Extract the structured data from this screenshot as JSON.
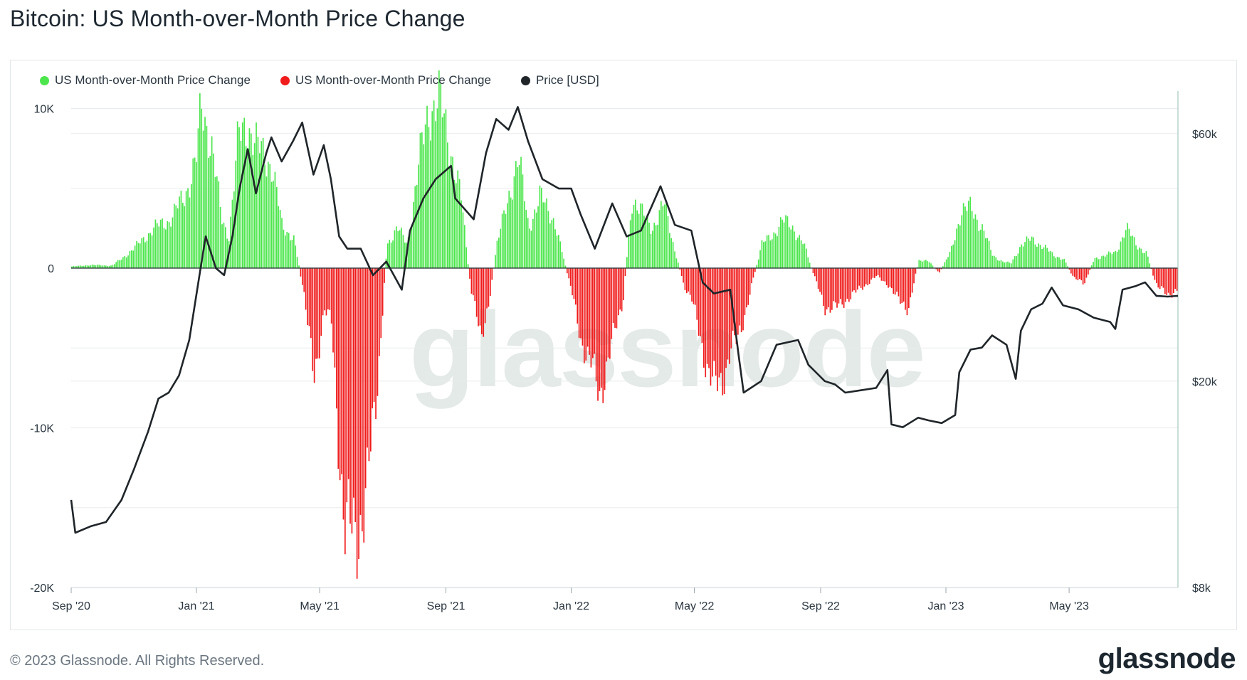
{
  "page": {
    "title": "Bitcoin: US Month-over-Month Price Change",
    "copyright": "© 2023 Glassnode. All Rights Reserved.",
    "logo_text": "glassnode",
    "watermark_text": "glassnode"
  },
  "colors": {
    "positive": "#4ce64c",
    "negative": "#f01b1b",
    "price_line": "#1f2529",
    "grid": "#e8ebee",
    "right_axis_line": "#a8c8c0"
  },
  "chart_data": {
    "type": "bar",
    "title": "Bitcoin: US Month-over-Month Price Change",
    "legend": [
      {
        "name": "US Month-over-Month Price Change",
        "color": "#4ce64c"
      },
      {
        "name": "US Month-over-Month Price Change",
        "color": "#f01b1b"
      },
      {
        "name": "Price [USD]",
        "color": "#1f2529"
      }
    ],
    "legend_placement": "top-left",
    "grid": true,
    "x_ticks": [
      "Sep '20",
      "Jan '21",
      "May '21",
      "Sep '21",
      "Jan '22",
      "May '22",
      "Sep '22",
      "Jan '23",
      "May '23"
    ],
    "y_left": {
      "ticks": [
        "10K",
        "0",
        "-10K",
        "-20K"
      ],
      "range": [
        -20000,
        11000
      ]
    },
    "y_right": {
      "ticks": [
        "$60k",
        "$20k",
        "$8k"
      ],
      "scale": "log",
      "range": [
        8000,
        72000
      ]
    },
    "xrange": [
      "2020-09-01",
      "2023-08-15"
    ],
    "series": [
      {
        "name": "US Month-over-Month Price Change",
        "axis": "left",
        "points": [
          [
            "2020-09-01",
            100
          ],
          [
            "2020-09-20",
            200
          ],
          [
            "2020-10-10",
            150
          ],
          [
            "2020-10-20",
            600
          ],
          [
            "2020-11-05",
            1500
          ],
          [
            "2020-11-20",
            2500
          ],
          [
            "2020-12-05",
            3000
          ],
          [
            "2020-12-20",
            4500
          ],
          [
            "2021-01-01",
            7000
          ],
          [
            "2021-01-05",
            10000
          ],
          [
            "2021-01-15",
            8000
          ],
          [
            "2021-01-25",
            3000
          ],
          [
            "2021-02-01",
            2000
          ],
          [
            "2021-02-10",
            8000
          ],
          [
            "2021-02-20",
            9000
          ],
          [
            "2021-03-01",
            7500
          ],
          [
            "2021-03-15",
            6500
          ],
          [
            "2021-03-25",
            2500
          ],
          [
            "2021-04-05",
            2000
          ],
          [
            "2021-04-15",
            -1500
          ],
          [
            "2021-04-25",
            -7000
          ],
          [
            "2021-05-05",
            -2500
          ],
          [
            "2021-05-12",
            -3500
          ],
          [
            "2021-05-18",
            -10000
          ],
          [
            "2021-05-25",
            -16000
          ],
          [
            "2021-06-05",
            -17000
          ],
          [
            "2021-06-15",
            -14000
          ],
          [
            "2021-06-25",
            -8000
          ],
          [
            "2021-07-05",
            1500
          ],
          [
            "2021-07-15",
            2500
          ],
          [
            "2021-07-25",
            1500
          ],
          [
            "2021-08-05",
            6500
          ],
          [
            "2021-08-15",
            10000
          ],
          [
            "2021-08-25",
            10500
          ],
          [
            "2021-09-05",
            7500
          ],
          [
            "2021-09-15",
            4500
          ],
          [
            "2021-09-25",
            -1500
          ],
          [
            "2021-10-05",
            -4000
          ],
          [
            "2021-10-12",
            -2500
          ],
          [
            "2021-10-20",
            1500
          ],
          [
            "2021-10-28",
            3500
          ],
          [
            "2021-11-10",
            7000
          ],
          [
            "2021-11-20",
            2500
          ],
          [
            "2021-12-01",
            4500
          ],
          [
            "2021-12-15",
            3000
          ],
          [
            "2022-01-01",
            -1500
          ],
          [
            "2022-01-10",
            -4500
          ],
          [
            "2022-01-20",
            -6000
          ],
          [
            "2022-01-28",
            -8000
          ],
          [
            "2022-02-10",
            -4500
          ],
          [
            "2022-02-20",
            -2000
          ],
          [
            "2022-03-01",
            4500
          ],
          [
            "2022-03-10",
            3500
          ],
          [
            "2022-03-20",
            2500
          ],
          [
            "2022-04-01",
            4000
          ],
          [
            "2022-04-10",
            1500
          ],
          [
            "2022-04-20",
            -1000
          ],
          [
            "2022-04-28",
            -2000
          ],
          [
            "2022-05-05",
            -4000
          ],
          [
            "2022-05-12",
            -6000
          ],
          [
            "2022-05-20",
            -7500
          ],
          [
            "2022-05-28",
            -7000
          ],
          [
            "2022-06-05",
            -5000
          ],
          [
            "2022-06-12",
            -4500
          ],
          [
            "2022-06-20",
            -2500
          ],
          [
            "2022-07-05",
            1500
          ],
          [
            "2022-07-15",
            2000
          ],
          [
            "2022-07-25",
            3000
          ],
          [
            "2022-08-05",
            2500
          ],
          [
            "2022-08-15",
            1500
          ],
          [
            "2022-08-25",
            -500
          ],
          [
            "2022-09-05",
            -2500
          ],
          [
            "2022-09-15",
            -2500
          ],
          [
            "2022-09-25",
            -2000
          ],
          [
            "2022-10-05",
            -1500
          ],
          [
            "2022-10-15",
            -1000
          ],
          [
            "2022-10-25",
            -500
          ],
          [
            "2022-11-05",
            -1000
          ],
          [
            "2022-11-15",
            -2000
          ],
          [
            "2022-11-25",
            -2500
          ],
          [
            "2022-12-05",
            500
          ],
          [
            "2022-12-15",
            400
          ],
          [
            "2022-12-25",
            -300
          ],
          [
            "2023-01-05",
            1000
          ],
          [
            "2023-01-15",
            3500
          ],
          [
            "2023-01-25",
            3800
          ],
          [
            "2023-02-05",
            2500
          ],
          [
            "2023-02-15",
            800
          ],
          [
            "2023-02-25",
            400
          ],
          [
            "2023-03-05",
            300
          ],
          [
            "2023-03-15",
            1500
          ],
          [
            "2023-03-25",
            1800
          ],
          [
            "2023-04-05",
            1400
          ],
          [
            "2023-04-15",
            800
          ],
          [
            "2023-04-25",
            600
          ],
          [
            "2023-05-05",
            -600
          ],
          [
            "2023-05-15",
            -1000
          ],
          [
            "2023-05-25",
            600
          ],
          [
            "2023-06-05",
            800
          ],
          [
            "2023-06-15",
            1000
          ],
          [
            "2023-06-25",
            2500
          ],
          [
            "2023-07-05",
            1500
          ],
          [
            "2023-07-15",
            900
          ],
          [
            "2023-07-25",
            -1200
          ],
          [
            "2023-08-05",
            -1600
          ],
          [
            "2023-08-15",
            -1400
          ]
        ]
      },
      {
        "name": "Price [USD]",
        "axis": "right",
        "points": [
          [
            "2020-09-01",
            11800
          ],
          [
            "2020-09-05",
            10200
          ],
          [
            "2020-09-20",
            10500
          ],
          [
            "2020-10-05",
            10700
          ],
          [
            "2020-10-20",
            11800
          ],
          [
            "2020-11-01",
            13500
          ],
          [
            "2020-11-15",
            16000
          ],
          [
            "2020-11-25",
            18500
          ],
          [
            "2020-12-05",
            19000
          ],
          [
            "2020-12-15",
            20500
          ],
          [
            "2020-12-25",
            24000
          ],
          [
            "2021-01-05",
            33000
          ],
          [
            "2021-01-10",
            38000
          ],
          [
            "2021-01-20",
            33000
          ],
          [
            "2021-01-28",
            32000
          ],
          [
            "2021-02-05",
            38000
          ],
          [
            "2021-02-12",
            47000
          ],
          [
            "2021-02-20",
            56000
          ],
          [
            "2021-02-28",
            46000
          ],
          [
            "2021-03-10",
            55000
          ],
          [
            "2021-03-15",
            59000
          ],
          [
            "2021-03-25",
            53000
          ],
          [
            "2021-04-05",
            58000
          ],
          [
            "2021-04-14",
            63000
          ],
          [
            "2021-04-25",
            50000
          ],
          [
            "2021-05-05",
            57000
          ],
          [
            "2021-05-12",
            49000
          ],
          [
            "2021-05-20",
            38000
          ],
          [
            "2021-05-28",
            36000
          ],
          [
            "2021-06-10",
            36000
          ],
          [
            "2021-06-22",
            32000
          ],
          [
            "2021-07-05",
            34000
          ],
          [
            "2021-07-20",
            30000
          ],
          [
            "2021-07-28",
            39000
          ],
          [
            "2021-08-10",
            45000
          ],
          [
            "2021-08-22",
            49000
          ],
          [
            "2021-09-06",
            52000
          ],
          [
            "2021-09-10",
            45000
          ],
          [
            "2021-09-28",
            41000
          ],
          [
            "2021-10-10",
            55000
          ],
          [
            "2021-10-20",
            64000
          ],
          [
            "2021-11-01",
            61000
          ],
          [
            "2021-11-10",
            67500
          ],
          [
            "2021-11-20",
            58000
          ],
          [
            "2021-12-04",
            49000
          ],
          [
            "2021-12-20",
            47000
          ],
          [
            "2022-01-01",
            47000
          ],
          [
            "2022-01-10",
            42000
          ],
          [
            "2022-01-24",
            36000
          ],
          [
            "2022-02-10",
            44000
          ],
          [
            "2022-02-24",
            38000
          ],
          [
            "2022-03-10",
            39000
          ],
          [
            "2022-03-29",
            47500
          ],
          [
            "2022-04-12",
            40000
          ],
          [
            "2022-04-28",
            39000
          ],
          [
            "2022-05-09",
            31000
          ],
          [
            "2022-05-20",
            29500
          ],
          [
            "2022-06-05",
            30000
          ],
          [
            "2022-06-13",
            22500
          ],
          [
            "2022-06-18",
            19000
          ],
          [
            "2022-07-05",
            20000
          ],
          [
            "2022-07-20",
            23500
          ],
          [
            "2022-08-10",
            24000
          ],
          [
            "2022-08-20",
            21500
          ],
          [
            "2022-09-05",
            20000
          ],
          [
            "2022-09-15",
            19700
          ],
          [
            "2022-09-25",
            19000
          ],
          [
            "2022-10-10",
            19200
          ],
          [
            "2022-10-25",
            19400
          ],
          [
            "2022-11-05",
            21000
          ],
          [
            "2022-11-09",
            16500
          ],
          [
            "2022-11-20",
            16300
          ],
          [
            "2022-12-05",
            17000
          ],
          [
            "2022-12-15",
            16800
          ],
          [
            "2022-12-28",
            16600
          ],
          [
            "2023-01-10",
            17200
          ],
          [
            "2023-01-14",
            20800
          ],
          [
            "2023-01-25",
            23000
          ],
          [
            "2023-02-05",
            23200
          ],
          [
            "2023-02-15",
            24500
          ],
          [
            "2023-03-01",
            23500
          ],
          [
            "2023-03-10",
            20200
          ],
          [
            "2023-03-15",
            25000
          ],
          [
            "2023-03-25",
            27500
          ],
          [
            "2023-04-05",
            28200
          ],
          [
            "2023-04-14",
            30300
          ],
          [
            "2023-04-25",
            28000
          ],
          [
            "2023-05-10",
            27500
          ],
          [
            "2023-05-25",
            26500
          ],
          [
            "2023-06-10",
            26000
          ],
          [
            "2023-06-15",
            25200
          ],
          [
            "2023-06-22",
            30000
          ],
          [
            "2023-07-05",
            30500
          ],
          [
            "2023-07-14",
            31000
          ],
          [
            "2023-07-25",
            29200
          ],
          [
            "2023-08-05",
            29100
          ],
          [
            "2023-08-15",
            29200
          ]
        ]
      }
    ]
  }
}
